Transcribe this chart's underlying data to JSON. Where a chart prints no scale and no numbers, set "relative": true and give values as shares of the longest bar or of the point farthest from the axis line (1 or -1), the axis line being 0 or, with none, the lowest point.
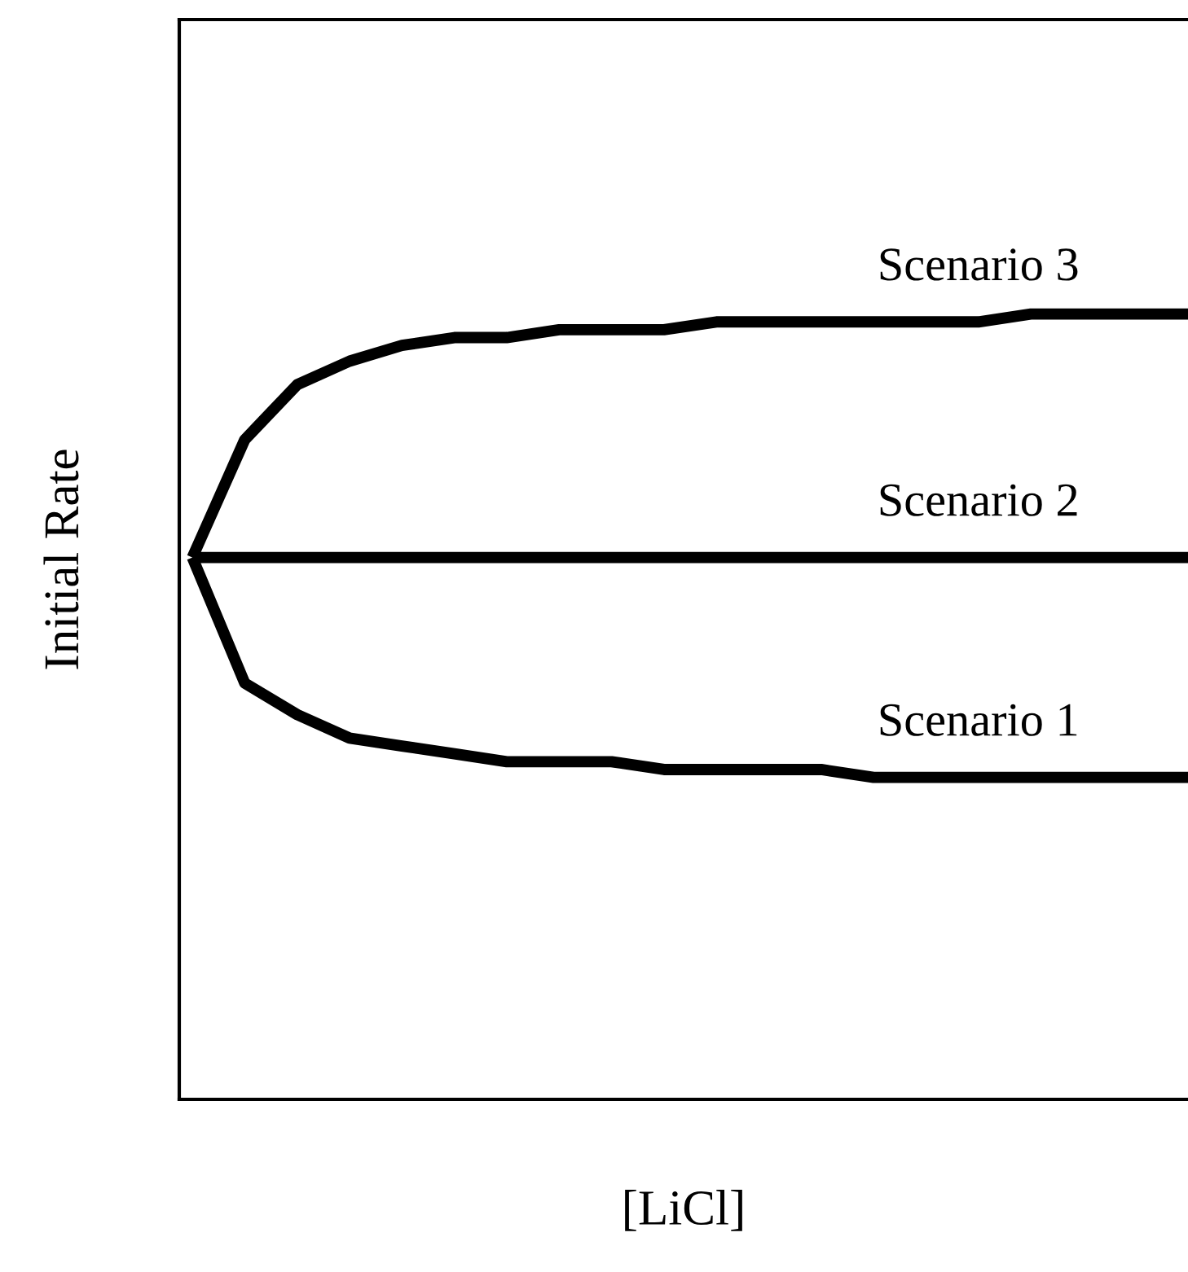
{
  "chart_data": {
    "type": "line",
    "relative": true,
    "xlabel": "[LiCl]",
    "ylabel": "Initial Rate",
    "tick_labels": false,
    "legend": false,
    "marker": "none",
    "line_style": "solid",
    "categories": [
      null,
      null,
      null,
      null,
      null,
      null,
      null,
      null,
      null,
      null,
      null,
      null,
      null,
      null,
      null,
      null,
      null,
      null,
      null,
      null
    ],
    "series": [
      {
        "name": "Scenario 3",
        "color": "#000000",
        "values": [
          0.69,
          0.84,
          0.91,
          0.94,
          0.96,
          0.97,
          0.97,
          0.98,
          0.98,
          0.98,
          0.99,
          0.99,
          0.99,
          0.99,
          0.99,
          0.99,
          1.0,
          1.0,
          1.0,
          1.0
        ]
      },
      {
        "name": "Scenario 2",
        "color": "#000000",
        "values": [
          0.69,
          0.69,
          0.69,
          0.69,
          0.69,
          0.69,
          0.69,
          0.69,
          0.69,
          0.69,
          0.69,
          0.69,
          0.69,
          0.69,
          0.69,
          0.69,
          0.69,
          0.69,
          0.69,
          0.69
        ]
      },
      {
        "name": "Scenario 1",
        "color": "#000000",
        "values": [
          0.69,
          0.53,
          0.49,
          0.46,
          0.45,
          0.44,
          0.43,
          0.43,
          0.43,
          0.42,
          0.42,
          0.42,
          0.42,
          0.41,
          0.41,
          0.41,
          0.41,
          0.41,
          0.41,
          0.41
        ]
      }
    ]
  }
}
